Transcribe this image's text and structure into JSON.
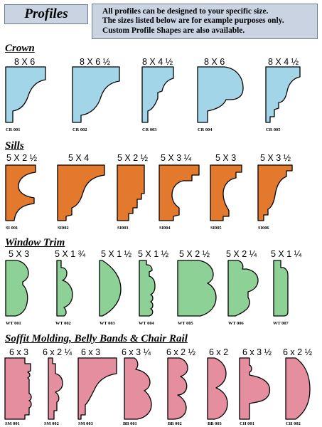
{
  "header": {
    "title": "Profiles",
    "note_lines": [
      "All profiles can be designed to your specific size.",
      "The sizes listed below are for example purposes only.",
      "Custom Profile Shapes are also available."
    ]
  },
  "colors": {
    "crown": "#a3d5e8",
    "sills": "#e2792d",
    "window_trim": "#8ed196",
    "soffit": "#e48ea0",
    "header_box": "#c9d3e2"
  },
  "sections": [
    {
      "title": "Crown",
      "items": [
        {
          "size": "8 X 6",
          "code": "CR 001"
        },
        {
          "size": "8 X 6 ½",
          "code": "CR 002"
        },
        {
          "size": "8 X 4 ½",
          "code": "CR 003"
        },
        {
          "size": "8 X 6",
          "code": "CR 004"
        },
        {
          "size": "8 X 4 ½",
          "code": "CR 005"
        }
      ]
    },
    {
      "title": "Sills",
      "items": [
        {
          "size": "5 X 2 ½",
          "code": "SI 001"
        },
        {
          "size": "5 X 4",
          "code": "SI002"
        },
        {
          "size": "5 X 2 ½",
          "code": "SI003"
        },
        {
          "size": "5 X 3 ¼",
          "code": "SI004"
        },
        {
          "size": "5 X 3",
          "code": "SI005"
        },
        {
          "size": "5 X 3 ½",
          "code": "SI006"
        }
      ]
    },
    {
      "title": "Window Trim",
      "items": [
        {
          "size": "5 X 3",
          "code": "WT 001"
        },
        {
          "size": "5 X 1 ¾",
          "code": "WT 002"
        },
        {
          "size": "5 X 1 ½",
          "code": "WT 003"
        },
        {
          "size": "5 X 1 ½",
          "code": "WT 004"
        },
        {
          "size": "5 X 2 ½",
          "code": "WT 005"
        },
        {
          "size": "5 X 2 ¼",
          "code": "WT 006"
        },
        {
          "size": "5 X 1 ¼",
          "code": "WT 007"
        }
      ]
    },
    {
      "title": "Soffit Molding, Belly Bands & Chair Rail",
      "items": [
        {
          "size": "6 x 3",
          "code": "SM 001"
        },
        {
          "size": "6 x 2 ¼",
          "code": "SM 002"
        },
        {
          "size": "6 x 3",
          "code": "SM 003"
        },
        {
          "size": "6 x 3 ¼",
          "code": "BB 001"
        },
        {
          "size": "6 x 2 ½",
          "code": "BB 002"
        },
        {
          "size": "6 x 2",
          "code": "BB 003"
        },
        {
          "size": "6 x 3 ½",
          "code": "CH 001"
        },
        {
          "size": "6 x 2 ½",
          "code": "CH 002"
        }
      ]
    }
  ]
}
